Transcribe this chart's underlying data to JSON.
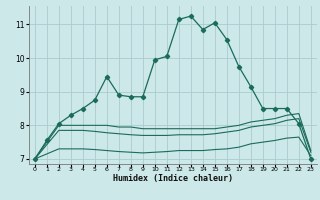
{
  "title": "",
  "xlabel": "Humidex (Indice chaleur)",
  "background_color": "#cce8e8",
  "grid_color": "#aacccc",
  "line_color": "#1a6b5a",
  "xlim": [
    -0.5,
    23.5
  ],
  "ylim": [
    6.85,
    11.55
  ],
  "yticks": [
    7,
    8,
    9,
    10,
    11
  ],
  "xticks": [
    0,
    1,
    2,
    3,
    4,
    5,
    6,
    7,
    8,
    9,
    10,
    11,
    12,
    13,
    14,
    15,
    16,
    17,
    18,
    19,
    20,
    21,
    22,
    23
  ],
  "series1_x": [
    0,
    1,
    2,
    3,
    4,
    5,
    6,
    7,
    8,
    9,
    10,
    11,
    12,
    13,
    14,
    15,
    16,
    17,
    18,
    19,
    20,
    21,
    22,
    23
  ],
  "series1_y": [
    7.0,
    7.55,
    8.05,
    8.3,
    8.5,
    8.75,
    9.45,
    8.9,
    8.85,
    8.85,
    9.95,
    10.05,
    11.15,
    11.25,
    10.85,
    11.05,
    10.55,
    9.75,
    9.15,
    8.5,
    8.5,
    8.5,
    8.05,
    7.0
  ],
  "series2_x": [
    0,
    2,
    3,
    4,
    5,
    6,
    7,
    8,
    9,
    10,
    11,
    12,
    13,
    14,
    15,
    16,
    17,
    18,
    19,
    20,
    21,
    22,
    23
  ],
  "series2_y": [
    7.0,
    8.0,
    8.0,
    8.0,
    8.0,
    8.0,
    7.95,
    7.95,
    7.9,
    7.9,
    7.9,
    7.9,
    7.9,
    7.9,
    7.9,
    7.95,
    8.0,
    8.1,
    8.15,
    8.2,
    8.3,
    8.35,
    7.25
  ],
  "series3_x": [
    0,
    2,
    3,
    4,
    5,
    6,
    7,
    8,
    9,
    10,
    11,
    12,
    13,
    14,
    15,
    16,
    17,
    18,
    19,
    20,
    21,
    22,
    23
  ],
  "series3_y": [
    7.0,
    7.85,
    7.85,
    7.85,
    7.82,
    7.78,
    7.75,
    7.72,
    7.7,
    7.7,
    7.7,
    7.72,
    7.72,
    7.72,
    7.75,
    7.8,
    7.85,
    7.95,
    8.0,
    8.05,
    8.15,
    8.2,
    7.2
  ],
  "series4_x": [
    0,
    2,
    3,
    4,
    5,
    6,
    7,
    8,
    9,
    10,
    11,
    12,
    13,
    14,
    15,
    16,
    17,
    18,
    19,
    20,
    21,
    22,
    23
  ],
  "series4_y": [
    7.0,
    7.3,
    7.3,
    7.3,
    7.28,
    7.25,
    7.22,
    7.2,
    7.18,
    7.2,
    7.22,
    7.25,
    7.25,
    7.25,
    7.28,
    7.3,
    7.35,
    7.45,
    7.5,
    7.55,
    7.62,
    7.65,
    7.1
  ]
}
